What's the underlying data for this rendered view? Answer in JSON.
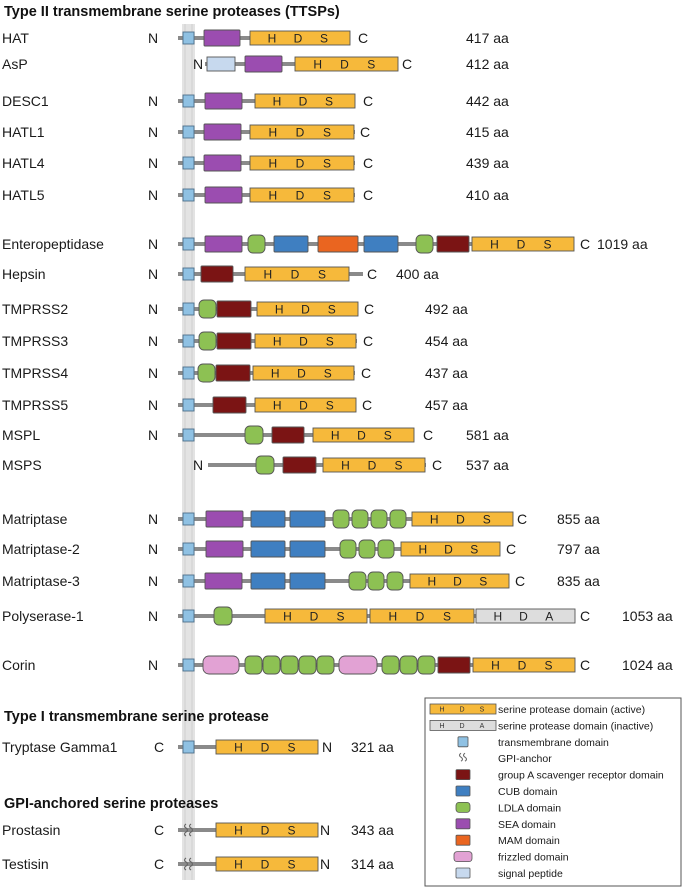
{
  "sections": [
    {
      "title": "Type II transmembrane serine proteases (TTSPs)"
    },
    {
      "title": "Type I transmembrane serine protease"
    },
    {
      "title": "GPI-anchored serine proteases"
    }
  ],
  "n_term": "N",
  "c_term": "C",
  "proteins": [
    {
      "name": "HAT",
      "length": "417 aa",
      "anchor": "tm",
      "term_left": "N",
      "term_right": "C",
      "domains": [
        {
          "type": "sea"
        },
        {
          "type": "sp",
          "label": [
            "H",
            "D",
            "S"
          ]
        }
      ]
    },
    {
      "name": "AsP",
      "length": "412 aa",
      "anchor": "none",
      "term_left": "N",
      "term_right": "C",
      "domains": [
        {
          "type": "signal"
        },
        {
          "type": "sea"
        },
        {
          "type": "sp",
          "label": [
            "H",
            "D",
            "S"
          ]
        }
      ]
    },
    {
      "name": "DESC1",
      "length": "442 aa",
      "anchor": "tm",
      "term_left": "N",
      "term_right": "C",
      "domains": [
        {
          "type": "sea"
        },
        {
          "type": "sp",
          "label": [
            "H",
            "D",
            "S"
          ]
        }
      ]
    },
    {
      "name": "HATL1",
      "length": "415 aa",
      "anchor": "tm",
      "term_left": "N",
      "term_right": "C",
      "domains": [
        {
          "type": "sea"
        },
        {
          "type": "sp",
          "label": [
            "H",
            "D",
            "S"
          ]
        }
      ]
    },
    {
      "name": "HATL4",
      "length": "439 aa",
      "anchor": "tm",
      "term_left": "N",
      "term_right": "C",
      "domains": [
        {
          "type": "sea"
        },
        {
          "type": "sp",
          "label": [
            "H",
            "D",
            "S"
          ]
        }
      ]
    },
    {
      "name": "HATL5",
      "length": "410 aa",
      "anchor": "tm",
      "term_left": "N",
      "term_right": "C",
      "domains": [
        {
          "type": "sea"
        },
        {
          "type": "sp",
          "label": [
            "H",
            "D",
            "S"
          ]
        }
      ]
    },
    {
      "name": "Enteropeptidase",
      "length": "1019 aa",
      "anchor": "tm",
      "term_left": "N",
      "term_right": "C",
      "domains": [
        {
          "type": "sea"
        },
        {
          "type": "ldla"
        },
        {
          "type": "cub"
        },
        {
          "type": "mam"
        },
        {
          "type": "cub"
        },
        {
          "type": "ldla"
        },
        {
          "type": "srcr"
        },
        {
          "type": "sp",
          "label": [
            "H",
            "D",
            "S"
          ]
        }
      ]
    },
    {
      "name": "Hepsin",
      "length": "400 aa",
      "anchor": "tm",
      "term_left": "N",
      "term_right": "C",
      "domains": [
        {
          "type": "srcr"
        },
        {
          "type": "sp",
          "label": [
            "H",
            "D",
            "S"
          ]
        }
      ]
    },
    {
      "name": "TMPRSS2",
      "length": "492 aa",
      "anchor": "tm",
      "term_left": "N",
      "term_right": "C",
      "domains": [
        {
          "type": "ldla"
        },
        {
          "type": "srcr"
        },
        {
          "type": "sp",
          "label": [
            "H",
            "D",
            "S"
          ]
        }
      ]
    },
    {
      "name": "TMPRSS3",
      "length": "454 aa",
      "anchor": "tm",
      "term_left": "N",
      "term_right": "C",
      "domains": [
        {
          "type": "ldla"
        },
        {
          "type": "srcr"
        },
        {
          "type": "sp",
          "label": [
            "H",
            "D",
            "S"
          ]
        }
      ]
    },
    {
      "name": "TMPRSS4",
      "length": "437 aa",
      "anchor": "tm",
      "term_left": "N",
      "term_right": "C",
      "domains": [
        {
          "type": "ldla"
        },
        {
          "type": "srcr"
        },
        {
          "type": "sp",
          "label": [
            "H",
            "D",
            "S"
          ]
        }
      ]
    },
    {
      "name": "TMPRSS5",
      "length": "457 aa",
      "anchor": "tm",
      "term_left": "N",
      "term_right": "C",
      "domains": [
        {
          "type": "srcr"
        },
        {
          "type": "sp",
          "label": [
            "H",
            "D",
            "S"
          ]
        }
      ]
    },
    {
      "name": "MSPL",
      "length": "581 aa",
      "anchor": "tm",
      "term_left": "N",
      "term_right": "C",
      "domains": [
        {
          "type": "ldla"
        },
        {
          "type": "srcr"
        },
        {
          "type": "sp",
          "label": [
            "H",
            "D",
            "S"
          ]
        }
      ]
    },
    {
      "name": "MSPS",
      "length": "537 aa",
      "anchor": "none",
      "term_left": "N",
      "term_right": "C",
      "domains": [
        {
          "type": "ldla"
        },
        {
          "type": "srcr"
        },
        {
          "type": "sp",
          "label": [
            "H",
            "D",
            "S"
          ]
        }
      ]
    },
    {
      "name": "Matriptase",
      "length": "855 aa",
      "anchor": "tm",
      "term_left": "N",
      "term_right": "C",
      "domains": [
        {
          "type": "sea"
        },
        {
          "type": "cub"
        },
        {
          "type": "cub"
        },
        {
          "type": "ldla"
        },
        {
          "type": "ldla"
        },
        {
          "type": "ldla"
        },
        {
          "type": "ldla"
        },
        {
          "type": "sp",
          "label": [
            "H",
            "D",
            "S"
          ]
        }
      ]
    },
    {
      "name": "Matriptase-2",
      "length": "797 aa",
      "anchor": "tm",
      "term_left": "N",
      "term_right": "C",
      "domains": [
        {
          "type": "sea"
        },
        {
          "type": "cub"
        },
        {
          "type": "cub"
        },
        {
          "type": "ldla"
        },
        {
          "type": "ldla"
        },
        {
          "type": "ldla"
        },
        {
          "type": "sp",
          "label": [
            "H",
            "D",
            "S"
          ]
        }
      ]
    },
    {
      "name": "Matriptase-3",
      "length": "835 aa",
      "anchor": "tm",
      "term_left": "N",
      "term_right": "C",
      "domains": [
        {
          "type": "sea"
        },
        {
          "type": "cub"
        },
        {
          "type": "cub"
        },
        {
          "type": "ldla"
        },
        {
          "type": "ldla"
        },
        {
          "type": "ldla"
        },
        {
          "type": "sp",
          "label": [
            "H",
            "D",
            "S"
          ]
        }
      ]
    },
    {
      "name": "Polyserase-1",
      "length": "1053 aa",
      "anchor": "tm",
      "term_left": "N",
      "term_right": "C",
      "domains": [
        {
          "type": "ldla"
        },
        {
          "type": "sp",
          "label": [
            "H",
            "D",
            "S"
          ]
        },
        {
          "type": "sp",
          "label": [
            "H",
            "D",
            "S"
          ]
        },
        {
          "type": "spi",
          "label": [
            "H",
            "D",
            "A"
          ]
        }
      ]
    },
    {
      "name": "Corin",
      "length": "1024 aa",
      "anchor": "tm",
      "term_left": "N",
      "term_right": "C",
      "domains": [
        {
          "type": "fz"
        },
        {
          "type": "ldla"
        },
        {
          "type": "ldla"
        },
        {
          "type": "ldla"
        },
        {
          "type": "ldla"
        },
        {
          "type": "ldla"
        },
        {
          "type": "fz"
        },
        {
          "type": "ldla"
        },
        {
          "type": "ldla"
        },
        {
          "type": "ldla"
        },
        {
          "type": "srcr"
        },
        {
          "type": "sp",
          "label": [
            "H",
            "D",
            "S"
          ]
        }
      ]
    },
    {
      "name": "Tryptase Gamma1",
      "length": "321 aa",
      "anchor": "tm",
      "term_left": "C",
      "term_right": "N",
      "domains": [
        {
          "type": "sp",
          "label": [
            "H",
            "D",
            "S"
          ]
        }
      ]
    },
    {
      "name": "Prostasin",
      "length": "343 aa",
      "anchor": "gpi",
      "term_left": "C",
      "term_right": "N",
      "domains": [
        {
          "type": "sp",
          "label": [
            "H",
            "D",
            "S"
          ]
        }
      ]
    },
    {
      "name": "Testisin",
      "length": "314 aa",
      "anchor": "gpi",
      "term_left": "C",
      "term_right": "N",
      "domains": [
        {
          "type": "sp",
          "label": [
            "H",
            "D",
            "S"
          ]
        }
      ]
    }
  ],
  "legend": {
    "items": [
      {
        "type": "sp",
        "label": "serine protease domain (active)",
        "swatch_text": [
          "H",
          "D",
          "S"
        ]
      },
      {
        "type": "spi",
        "label": "serine protease domain (inactive)",
        "swatch_text": [
          "H",
          "D",
          "A"
        ]
      },
      {
        "type": "tm",
        "label": "transmembrane domain"
      },
      {
        "type": "gpi",
        "label": "GPI-anchor"
      },
      {
        "type": "srcr",
        "label": "group A scavenger receptor domain"
      },
      {
        "type": "cub",
        "label": "CUB domain"
      },
      {
        "type": "ldla",
        "label": "LDLA domain"
      },
      {
        "type": "sea",
        "label": "SEA domain"
      },
      {
        "type": "mam",
        "label": "MAM domain"
      },
      {
        "type": "fz",
        "label": "frizzled domain"
      },
      {
        "type": "signal",
        "label": "signal peptide"
      }
    ]
  },
  "colors": {
    "backbone": "#8a8a8a",
    "membrane": "#e3e3e3",
    "sp": "#f6b93b",
    "spi": "#dddddd",
    "tm": "#8fc1e3",
    "srcr": "#7b1414",
    "cub": "#3f7fc1",
    "ldla": "#8dc153",
    "sea": "#9b4db0",
    "mam": "#ea6520",
    "fz": "#e2a2d4",
    "signal": "#c7d9ee"
  }
}
